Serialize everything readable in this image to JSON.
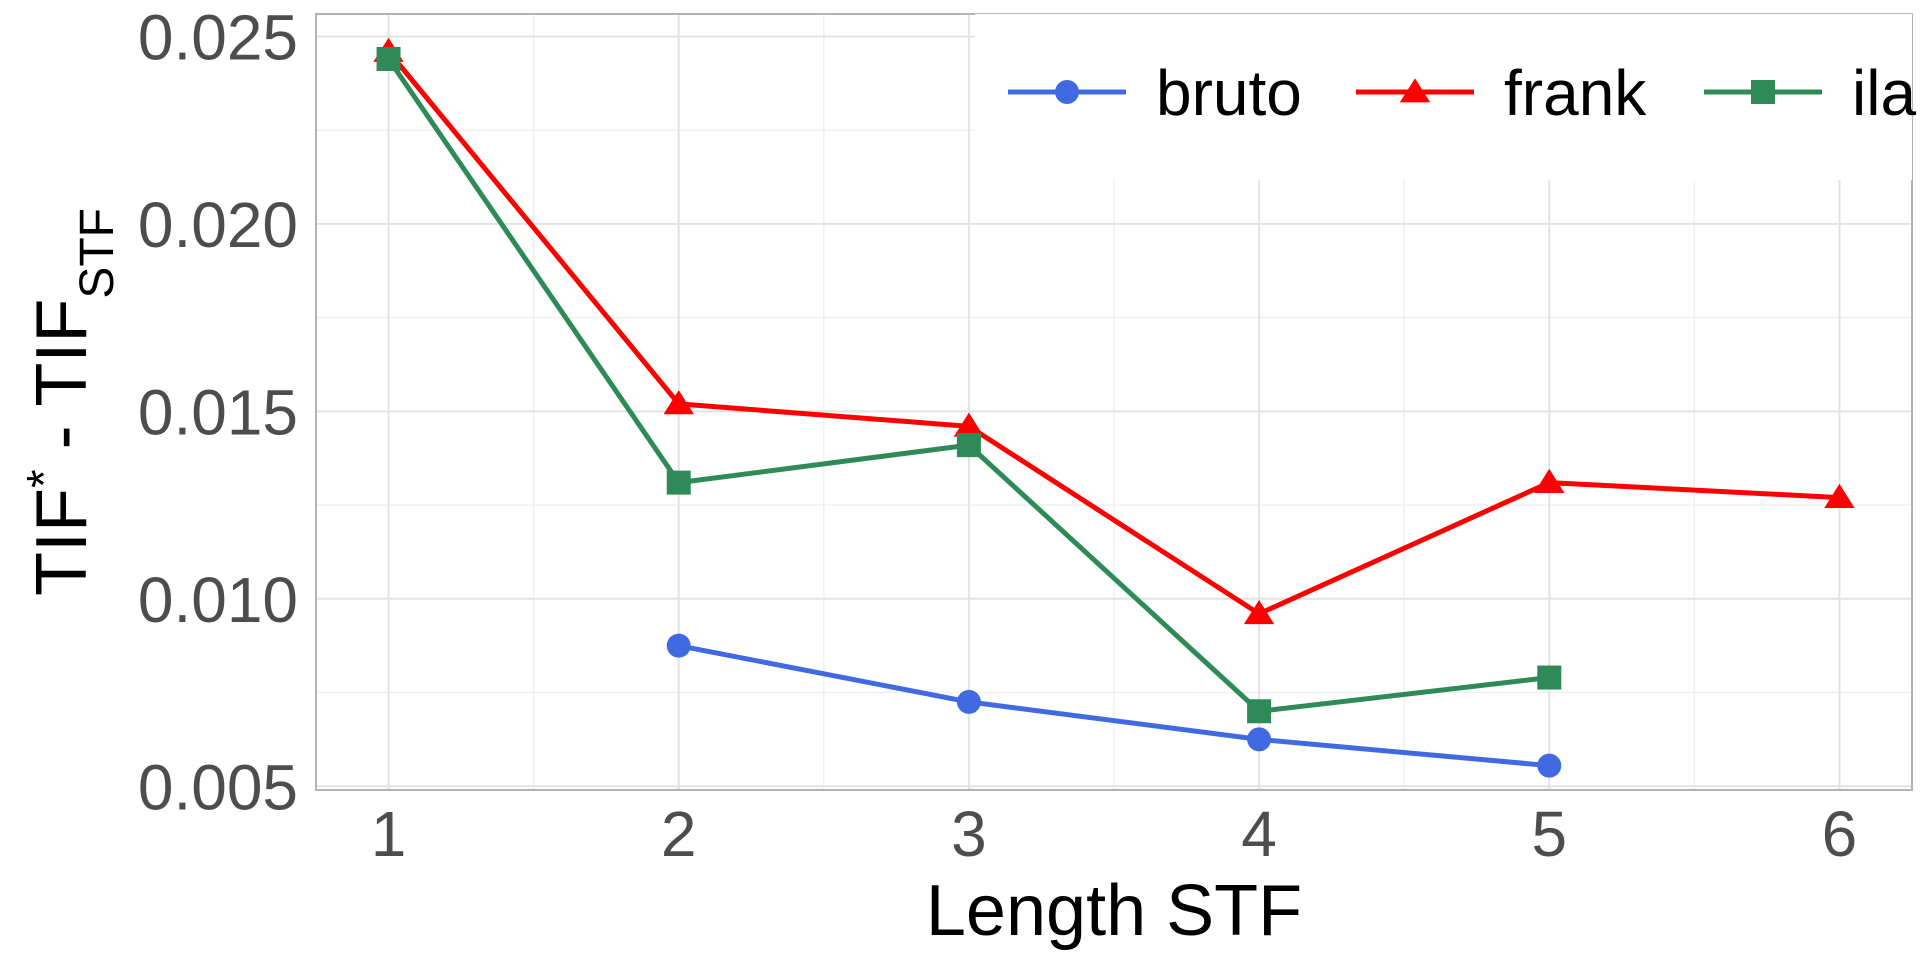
{
  "chart_data": {
    "type": "line",
    "title": "",
    "xlabel": "Length STF",
    "ylabel": {
      "main": "TIF",
      "superscript": "*",
      "separator": " - ",
      "second": "TIF",
      "subscript": "STF"
    },
    "xlim": [
      0.75,
      6.25
    ],
    "ylim": [
      0.0049,
      0.0256
    ],
    "x_ticks": [
      1,
      2,
      3,
      4,
      5,
      6
    ],
    "y_ticks": [
      0.005,
      0.01,
      0.015,
      0.02,
      0.025
    ],
    "y_tick_labels": [
      "0.005",
      "0.010",
      "0.015",
      "0.020",
      "0.025"
    ],
    "grid": true,
    "legend_position": "top-right",
    "series": [
      {
        "name": "bruto",
        "color": "#4169E1",
        "marker": "circle",
        "points": [
          [
            2,
            0.00875
          ],
          [
            3,
            0.00725
          ],
          [
            4,
            0.00625
          ],
          [
            5,
            0.00555
          ]
        ]
      },
      {
        "name": "frank",
        "color": "#FF0000",
        "marker": "triangle",
        "points": [
          [
            1,
            0.0246
          ],
          [
            2,
            0.0152
          ],
          [
            3,
            0.0146
          ],
          [
            4,
            0.0096
          ],
          [
            5,
            0.0131
          ],
          [
            6,
            0.0127
          ]
        ]
      },
      {
        "name": "ila",
        "color": "#2E8B57",
        "marker": "square",
        "points": [
          [
            1,
            0.0244
          ],
          [
            2,
            0.0131
          ],
          [
            3,
            0.0141
          ],
          [
            4,
            0.007
          ],
          [
            5,
            0.0079
          ]
        ]
      }
    ]
  }
}
